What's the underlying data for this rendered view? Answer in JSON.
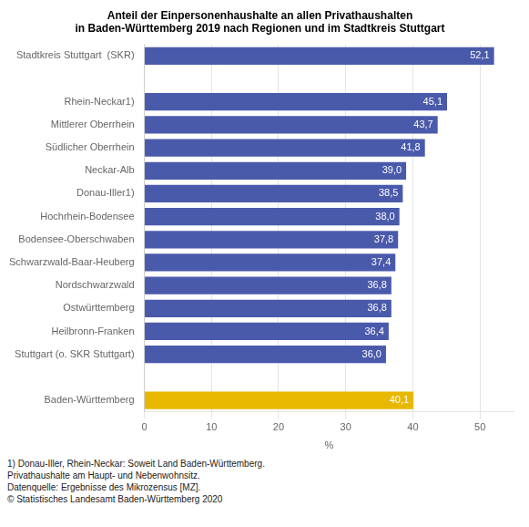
{
  "chart_data": {
    "type": "bar",
    "orientation": "horizontal",
    "title": "Anteil der Einpersonenhaushalte an allen Privathaushalten\nin Baden-Württemberg 2019 nach Regionen und im Stadtkreis Stuttgart",
    "categories": [
      "Baden-Württemberg",
      null,
      "Stuttgart (o. SKR Stuttgart)",
      "Heilbronn-Franken",
      "Ostwürttemberg",
      "Nordschwarzwald",
      "Schwarzwald-Baar-Heuberg",
      "Bodensee-Oberschwaben",
      "Hochrhein-Bodensee",
      "Donau-Iller1)",
      "Neckar-Alb",
      "Südlicher Oberrhein",
      "Mittlerer Oberrhein",
      "Rhein-Neckar1)",
      null,
      "Stadtkreis Stuttgart  (SKR)"
    ],
    "values": [
      40.1,
      null,
      36.0,
      36.4,
      36.8,
      36.8,
      37.4,
      37.8,
      38.0,
      38.5,
      39.0,
      41.8,
      43.7,
      45.1,
      null,
      52.1
    ],
    "value_labels": [
      "40,1",
      null,
      "36,0",
      "36,4",
      "36,8",
      "36,8",
      "37,4",
      "37,8",
      "38,0",
      "38,5",
      "39,0",
      "41,8",
      "43,7",
      "45,1",
      null,
      "52,1"
    ],
    "colors": [
      "#e8b800",
      null,
      "#4a5aab",
      "#4a5aab",
      "#4a5aab",
      "#4a5aab",
      "#4a5aab",
      "#4a5aab",
      "#4a5aab",
      "#4a5aab",
      "#4a5aab",
      "#4a5aab",
      "#4a5aab",
      "#4a5aab",
      null,
      "#4a5aab"
    ],
    "data_labels": true,
    "x_label": "%",
    "xlim": [
      0,
      55
    ],
    "xticks": [
      0,
      10,
      20,
      30,
      40,
      50
    ],
    "grid": true,
    "annotations": [
      "1) Donau-Iller, Rhein-Neckar: Soweit Land Baden-Württemberg.",
      "Privathaushalte am Haupt- und Nebenwohnsitz.",
      "Datenquelle: Ergebnisse des Mikrozensus [MZ].",
      "© Statistisches Landesamt Baden-Württemberg 2020"
    ]
  }
}
